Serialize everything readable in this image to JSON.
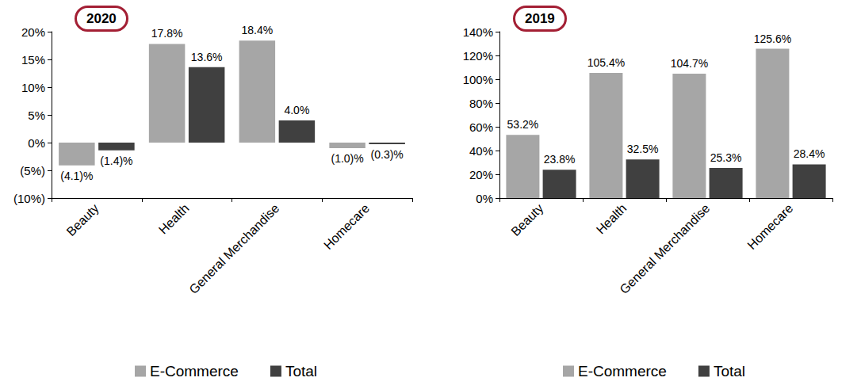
{
  "chart_data": [
    {
      "type": "bar",
      "title": "2020",
      "categories": [
        "Beauty",
        "Health",
        "General Merchandise",
        "Homecare"
      ],
      "series": [
        {
          "name": "E-Commerce",
          "color": "#a6a6a6",
          "values": [
            -4.1,
            17.8,
            18.4,
            -1.0
          ],
          "value_labels": [
            "(4.1)%",
            "17.8%",
            "18.4%",
            "(1.0)%"
          ]
        },
        {
          "name": "Total",
          "color": "#404040",
          "values": [
            -1.4,
            13.6,
            4.0,
            -0.3
          ],
          "value_labels": [
            "(1.4)%",
            "13.6%",
            "4.0%",
            "(0.3)%"
          ]
        }
      ],
      "ylim": [
        -10,
        20
      ],
      "yticks": [
        {
          "value": -10,
          "label": "(10%)"
        },
        {
          "value": -5,
          "label": "(5%)"
        },
        {
          "value": 0,
          "label": "0%"
        },
        {
          "value": 5,
          "label": "5%"
        },
        {
          "value": 10,
          "label": "10%"
        },
        {
          "value": 15,
          "label": "15%"
        },
        {
          "value": 20,
          "label": "20%"
        }
      ],
      "grid": false,
      "legend": "bottom",
      "data_labels": true
    },
    {
      "type": "bar",
      "title": "2019",
      "categories": [
        "Beauty",
        "Health",
        "General Merchandise",
        "Homecare"
      ],
      "series": [
        {
          "name": "E-Commerce",
          "color": "#a6a6a6",
          "values": [
            53.2,
            105.4,
            104.7,
            125.6
          ],
          "value_labels": [
            "53.2%",
            "105.4%",
            "104.7%",
            "125.6%"
          ]
        },
        {
          "name": "Total",
          "color": "#404040",
          "values": [
            23.8,
            32.5,
            25.3,
            28.4
          ],
          "value_labels": [
            "23.8%",
            "32.5%",
            "25.3%",
            "28.4%"
          ]
        }
      ],
      "ylim": [
        0,
        140
      ],
      "yticks": [
        {
          "value": 0,
          "label": "0%"
        },
        {
          "value": 20,
          "label": "20%"
        },
        {
          "value": 40,
          "label": "40%"
        },
        {
          "value": 60,
          "label": "60%"
        },
        {
          "value": 80,
          "label": "80%"
        },
        {
          "value": 100,
          "label": "100%"
        },
        {
          "value": 120,
          "label": "120%"
        },
        {
          "value": 140,
          "label": "140%"
        }
      ],
      "grid": false,
      "legend": "bottom",
      "data_labels": true
    }
  ]
}
